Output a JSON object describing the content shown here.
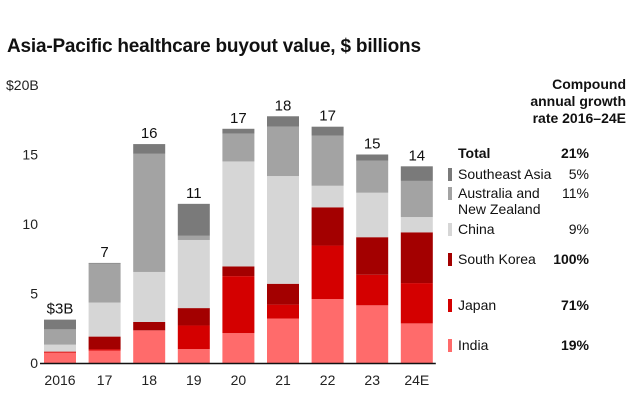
{
  "chart_data": {
    "type": "bar",
    "stacked": true,
    "title": "Asia-Pacific healthcare buyout value, $ billions",
    "xlabel": "",
    "ylabel": "",
    "ylim": [
      0,
      20
    ],
    "yticks": [
      {
        "value": 0,
        "label": "0"
      },
      {
        "value": 5,
        "label": "5"
      },
      {
        "value": 10,
        "label": "10"
      },
      {
        "value": 15,
        "label": "15"
      },
      {
        "value": 20,
        "label": "$20B"
      }
    ],
    "grid": false,
    "categories": [
      "2016",
      "17",
      "18",
      "19",
      "20",
      "21",
      "22",
      "23",
      "24E"
    ],
    "totals_labels": [
      "$3B",
      "7",
      "16",
      "11",
      "17",
      "18",
      "17",
      "15",
      "14"
    ],
    "series": [
      {
        "name": "India",
        "color": "#ff6b6b",
        "values": [
          0.75,
          0.9,
          2.35,
          1.0,
          2.15,
          3.2,
          4.6,
          4.15,
          2.85
        ]
      },
      {
        "name": "Japan",
        "color": "#d40000",
        "values": [
          0.07,
          0.1,
          0.0,
          1.7,
          4.1,
          1.0,
          3.85,
          2.2,
          2.9
        ]
      },
      {
        "name": "South Korea",
        "color": "#a30000",
        "values": [
          0.0,
          0.9,
          0.6,
          1.25,
          0.7,
          1.5,
          2.75,
          2.7,
          3.65
        ]
      },
      {
        "name": "China",
        "color": "#d6d6d6",
        "values": [
          0.5,
          2.45,
          3.6,
          4.9,
          7.55,
          7.75,
          1.55,
          3.2,
          1.1
        ]
      },
      {
        "name": "Australia and New Zealand",
        "color": "#a3a3a3",
        "values": [
          1.1,
          2.8,
          8.5,
          0.3,
          2.0,
          3.55,
          3.6,
          2.3,
          2.6
        ]
      },
      {
        "name": "Southeast Asia",
        "color": "#7a7a7a",
        "values": [
          0.7,
          0.05,
          0.7,
          2.3,
          0.35,
          0.75,
          0.65,
          0.45,
          1.05
        ]
      }
    ],
    "legend": {
      "placement": "right",
      "header": [
        "Compound",
        "annual growth",
        "rate 2016–24E"
      ],
      "rows": [
        {
          "label": "Total",
          "value": "21%",
          "label_bold": true,
          "value_bold": true,
          "swatch": null
        },
        {
          "label": "Southeast Asia",
          "value": "5%",
          "label_bold": false,
          "value_bold": false,
          "swatch": "#7a7a7a"
        },
        {
          "label": "Australia and New Zealand",
          "value": "11%",
          "label_bold": false,
          "value_bold": false,
          "swatch": "#a3a3a3"
        },
        {
          "label": "China",
          "value": "9%",
          "label_bold": false,
          "value_bold": false,
          "swatch": "#d6d6d6"
        },
        {
          "label": "South Korea",
          "value": "100%",
          "label_bold": false,
          "value_bold": true,
          "swatch": "#a30000"
        },
        {
          "label": "Japan",
          "value": "71%",
          "label_bold": false,
          "value_bold": true,
          "swatch": "#d40000"
        },
        {
          "label": "India",
          "value": "19%",
          "label_bold": false,
          "value_bold": true,
          "swatch": "#ff6b6b"
        }
      ]
    }
  }
}
